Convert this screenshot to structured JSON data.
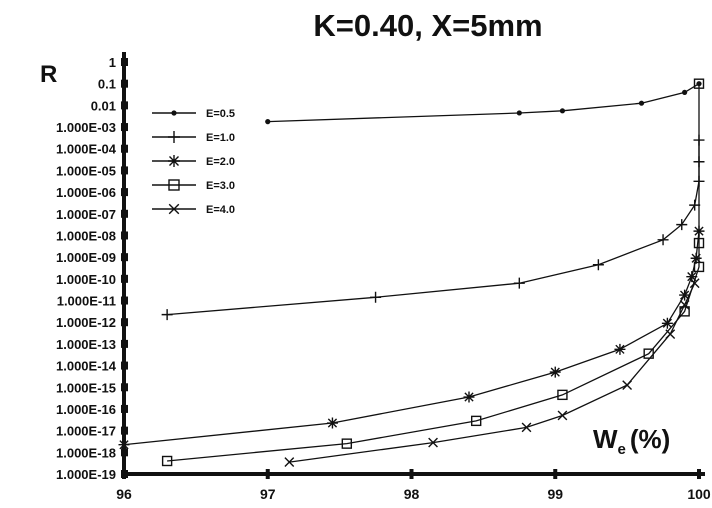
{
  "chart_data": {
    "type": "line",
    "title": "K=0.40, X=5mm",
    "ylabel": "R",
    "xlabel": "W",
    "xlabel_sub": "e",
    "xlabel_unit": "(%)",
    "xlim": [
      96,
      100
    ],
    "ylim": [
      -19,
      0
    ],
    "yscale": "log",
    "grid": false,
    "legend_position": "top-left",
    "x_ticks": [
      "96",
      "97",
      "98",
      "99",
      "100"
    ],
    "y_ticks": [
      "1",
      "0.1",
      "0.01",
      "1.000E-03",
      "1.000E-04",
      "1.000E-05",
      "1.000E-06",
      "1.000E-07",
      "1.000E-08",
      "1.000E-09",
      "1.000E-10",
      "1.000E-11",
      "1.000E-12",
      "1.000E-13",
      "1.000E-14",
      "1.000E-15",
      "1.000E-16",
      "1.000E-17",
      "1.000E-18",
      "1.000E-19"
    ],
    "series": [
      {
        "name": "E=0.5",
        "marker": "dot",
        "x": [
          97.0,
          98.75,
          99.05,
          99.6,
          99.9,
          100.0
        ],
        "log10_y": [
          -2.75,
          -2.35,
          -2.25,
          -1.9,
          -1.4,
          -1.0
        ]
      },
      {
        "name": "E=1.0",
        "marker": "plus",
        "x": [
          96.3,
          97.75,
          98.75,
          99.3,
          99.75,
          99.88,
          99.97,
          100.0,
          100.0,
          100.0
        ],
        "log10_y": [
          -11.65,
          -10.85,
          -10.2,
          -9.35,
          -8.2,
          -7.5,
          -6.6,
          -5.5,
          -4.6,
          -3.6
        ]
      },
      {
        "name": "E=2.0",
        "marker": "asterisk",
        "x": [
          96.0,
          97.45,
          98.4,
          99.0,
          99.45,
          99.78,
          99.9,
          99.95,
          99.98,
          100.0
        ],
        "log10_y": [
          -17.65,
          -16.65,
          -15.45,
          -14.3,
          -13.25,
          -12.05,
          -10.75,
          -9.9,
          -9.05,
          -7.8
        ]
      },
      {
        "name": "E=3.0",
        "marker": "square",
        "x": [
          96.3,
          97.55,
          98.45,
          99.05,
          99.65,
          99.9,
          100.0,
          100.0,
          100.0
        ],
        "log10_y": [
          -18.4,
          -17.6,
          -16.55,
          -15.35,
          -13.45,
          -11.5,
          -9.45,
          -8.35,
          -1.0
        ]
      },
      {
        "name": "E=4.0",
        "marker": "x",
        "x": [
          97.15,
          98.15,
          98.8,
          99.05,
          99.5,
          99.8,
          99.9,
          99.97
        ],
        "log10_y": [
          -18.45,
          -17.55,
          -16.85,
          -16.3,
          -14.9,
          -12.55,
          -11.2,
          -10.2
        ]
      }
    ]
  }
}
